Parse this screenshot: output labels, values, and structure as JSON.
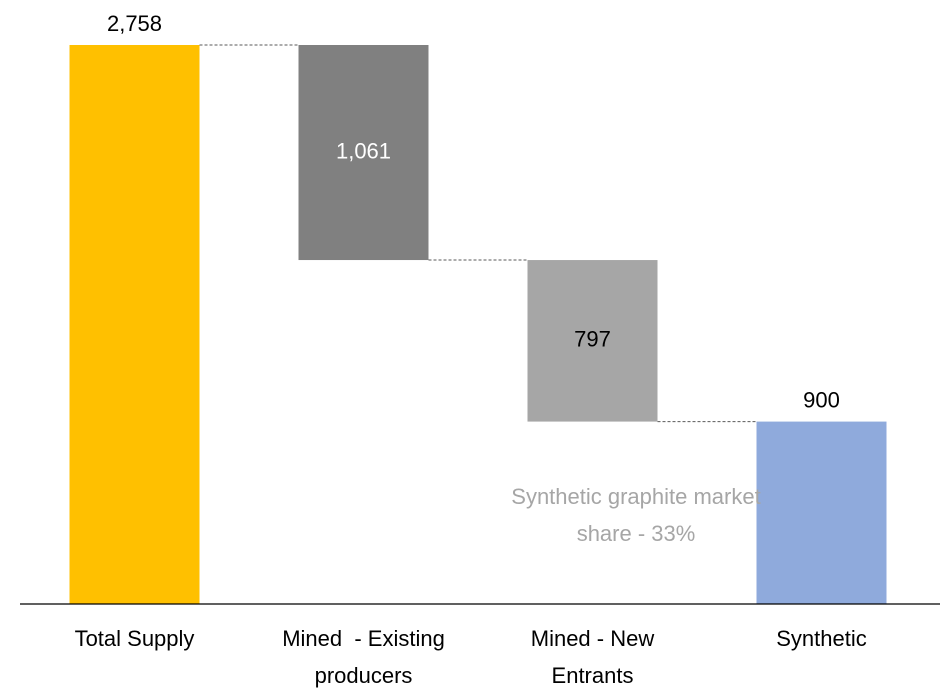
{
  "chart_data": {
    "type": "waterfall",
    "categories": [
      "Total Supply",
      "Mined  - Existing producers",
      "Mined - New Entrants",
      "Synthetic"
    ],
    "values": [
      2758,
      1061,
      797,
      900
    ],
    "value_labels": [
      "2,758",
      "1,061",
      "797",
      "900"
    ],
    "measures": [
      "total",
      "decrease",
      "decrease",
      "total"
    ],
    "colors": [
      "#ffc000",
      "#808080",
      "#a6a6a6",
      "#8faadc"
    ],
    "label_colors": [
      "#000000",
      "#ffffff",
      "#000000",
      "#000000"
    ],
    "annotation": "Synthetic graphite market share - 33%"
  }
}
